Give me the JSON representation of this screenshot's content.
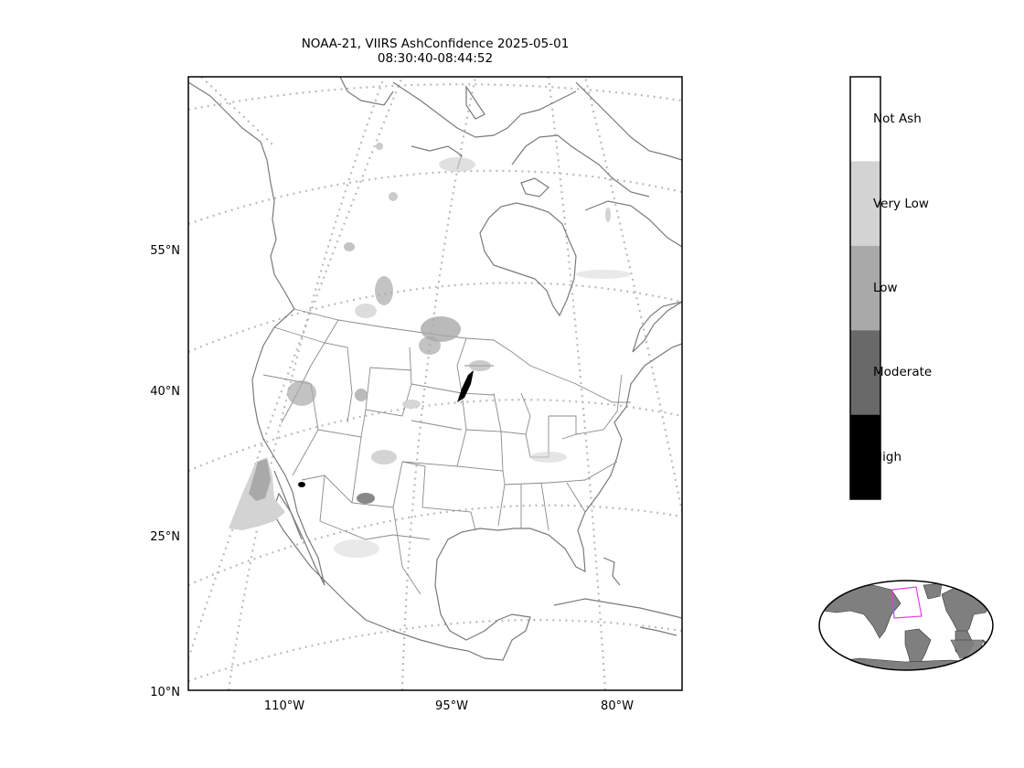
{
  "title": {
    "line1": "NOAA-21, VIIRS AshConfidence 2025-05-01",
    "line2": "08:30:40-08:44:52"
  },
  "lat_ticks": [
    "55°N",
    "40°N",
    "25°N",
    "10°N"
  ],
  "lon_ticks": [
    "110°W",
    "95°W",
    "80°W"
  ],
  "colorbar": {
    "categories": [
      {
        "label": "Not Ash",
        "color": "#ffffff"
      },
      {
        "label": "Very Low",
        "color": "#d3d3d3"
      },
      {
        "label": "Low",
        "color": "#a9a9a9"
      },
      {
        "label": "Moderate",
        "color": "#696969"
      },
      {
        "label": "High",
        "color": "#000000"
      }
    ]
  },
  "colors": {
    "coastline": "#7a7a7a",
    "gridline": "#bbbbbb",
    "land_inset": "#7f7f7f",
    "inset_box": "#e040e0"
  },
  "inset": {
    "description_icon": "world-locator-globe"
  }
}
